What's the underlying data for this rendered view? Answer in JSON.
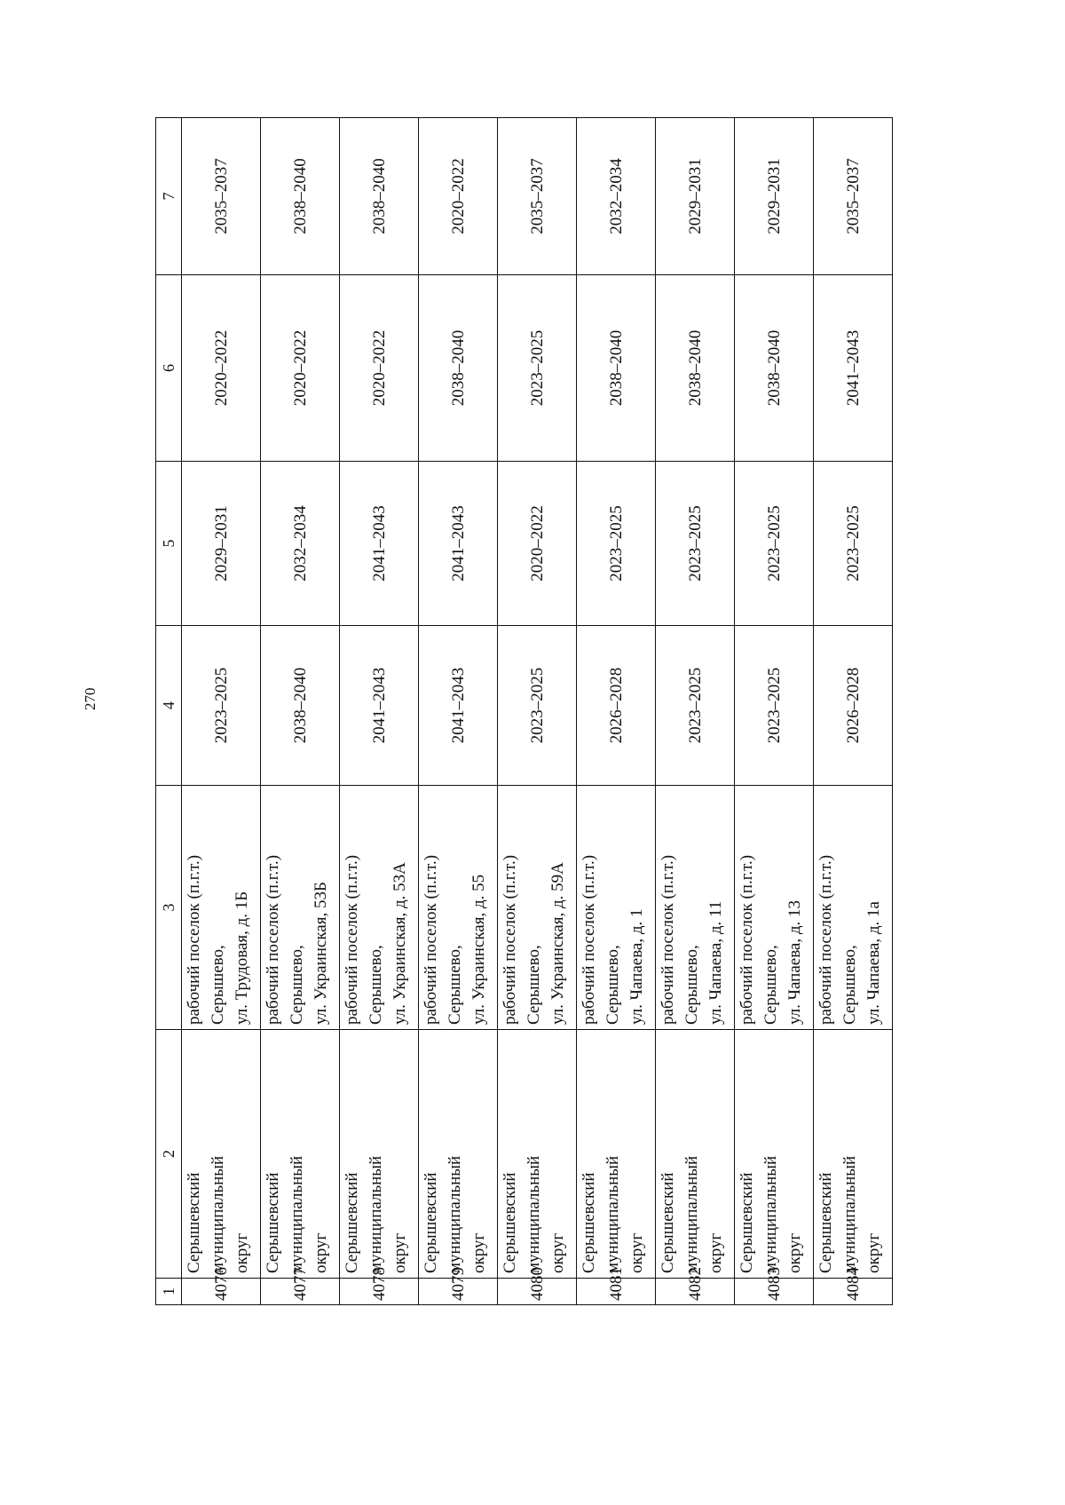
{
  "page_number": "270",
  "table": {
    "headers": [
      "1",
      "2",
      "3",
      "4",
      "5",
      "6",
      "7"
    ],
    "rows": [
      {
        "id": "4076",
        "district": [
          "Серышевский",
          "муниципальный",
          "округ"
        ],
        "address": [
          "рабочий поселок (п.г.т.)",
          "Серышево,",
          "ул. Трудовая, д. 1Б"
        ],
        "c4": "2023–2025",
        "c5": "2029–2031",
        "c6": "2020–2022",
        "c7": "2035–2037"
      },
      {
        "id": "4077",
        "district": [
          "Серышевский",
          "муниципальный",
          "округ"
        ],
        "address": [
          "рабочий поселок (п.г.т.)",
          "Серышево,",
          "ул. Украинская,  53Б"
        ],
        "c4": "2038–2040",
        "c5": "2032–2034",
        "c6": "2020–2022",
        "c7": "2038–2040"
      },
      {
        "id": "4078",
        "district": [
          "Серышевский",
          "муниципальный",
          "округ"
        ],
        "address": [
          "рабочий поселок (п.г.т.)",
          "Серышево,",
          "ул. Украинская, д. 53А"
        ],
        "c4": "2041–2043",
        "c5": "2041–2043",
        "c6": "2020–2022",
        "c7": "2038–2040"
      },
      {
        "id": "4079",
        "district": [
          "Серышевский",
          "муниципальный",
          "округ"
        ],
        "address": [
          "рабочий поселок (п.г.т.)",
          "Серышево,",
          "ул. Украинская, д. 55"
        ],
        "c4": "2041–2043",
        "c5": "2041–2043",
        "c6": "2038–2040",
        "c7": "2020–2022"
      },
      {
        "id": "4080",
        "district": [
          "Серышевский",
          "муниципальный",
          "округ"
        ],
        "address": [
          "рабочий поселок (п.г.т.)",
          "Серышево,",
          "ул. Украинская, д. 59А"
        ],
        "c4": "2023–2025",
        "c5": "2020–2022",
        "c6": "2023–2025",
        "c7": "2035–2037"
      },
      {
        "id": "4081",
        "district": [
          "Серышевский",
          "муниципальный",
          "округ"
        ],
        "address": [
          "рабочий поселок (п.г.т.)",
          "Серышево,",
          "ул. Чапаева, д. 1"
        ],
        "c4": "2026–2028",
        "c5": "2023–2025",
        "c6": "2038–2040",
        "c7": "2032–2034"
      },
      {
        "id": "4082",
        "district": [
          "Серышевский",
          "муниципальный",
          "округ"
        ],
        "address": [
          "рабочий поселок (п.г.т.)",
          "Серышево,",
          "ул. Чапаева, д. 11"
        ],
        "c4": "2023–2025",
        "c5": "2023–2025",
        "c6": "2038–2040",
        "c7": "2029–2031"
      },
      {
        "id": "4083",
        "district": [
          "Серышевский",
          "муниципальный",
          "округ"
        ],
        "address": [
          "рабочий поселок (п.г.т.)",
          "Серышево,",
          "ул. Чапаева, д. 13"
        ],
        "c4": "2023–2025",
        "c5": "2023–2025",
        "c6": "2038–2040",
        "c7": "2029–2031"
      },
      {
        "id": "4084",
        "district": [
          "Серышевский",
          "муниципальный",
          "округ"
        ],
        "address": [
          "рабочий поселок (п.г.т.)",
          "Серышево,",
          "ул. Чапаева, д. 1а"
        ],
        "c4": "2026–2028",
        "c5": "2023–2025",
        "c6": "2041–2043",
        "c7": "2035–2037"
      }
    ]
  }
}
